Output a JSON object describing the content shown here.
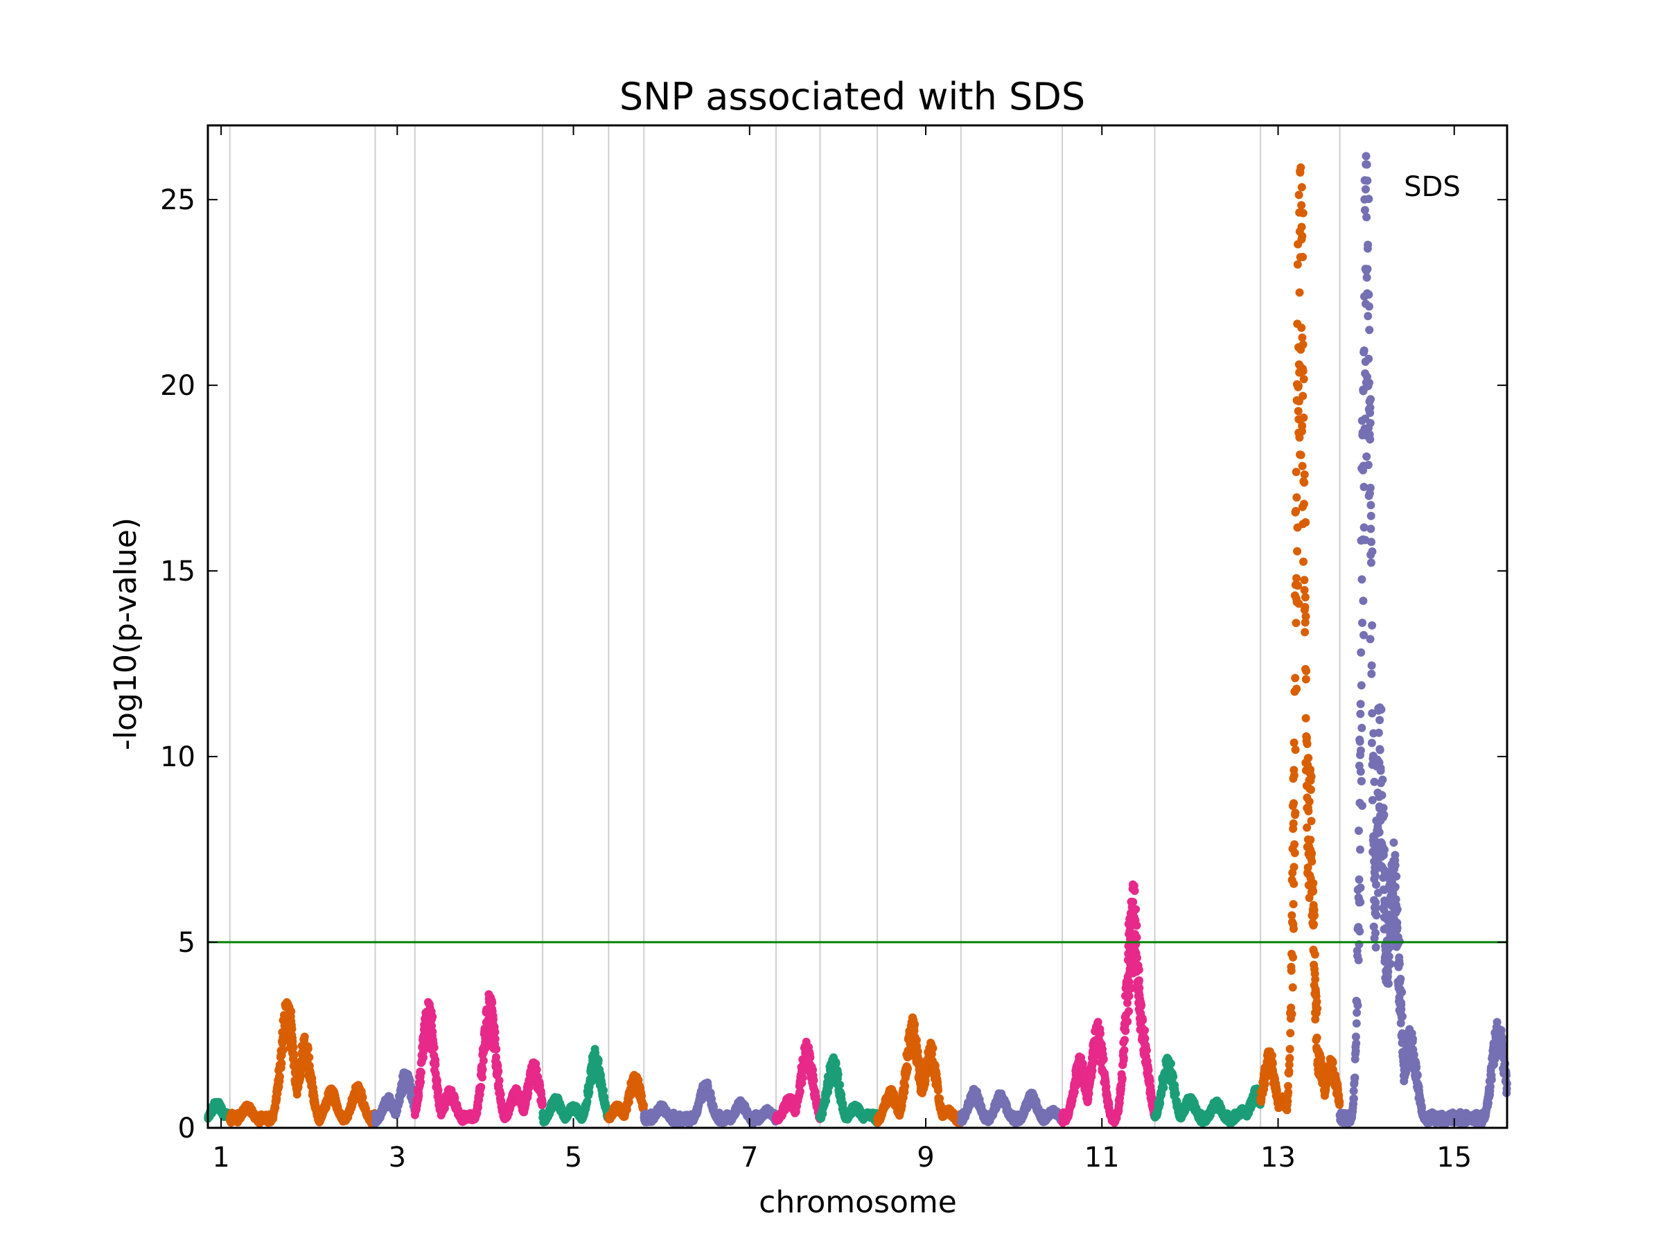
{
  "chart_data": {
    "type": "scatter",
    "title": "SNP associated with SDS",
    "xlabel": "chromosome",
    "ylabel": "-log10(p-value)",
    "xlim": [
      0.85,
      15.6
    ],
    "ylim": [
      0,
      27
    ],
    "x_ticks": [
      1,
      3,
      5,
      7,
      9,
      11,
      13,
      15
    ],
    "y_ticks": [
      0,
      5,
      10,
      15,
      20,
      25
    ],
    "x_tick_labels": [
      "1",
      "3",
      "5",
      "7",
      "9",
      "11",
      "13",
      "15"
    ],
    "y_tick_labels": [
      "0",
      "5",
      "10",
      "15",
      "20",
      "25"
    ],
    "grid": "vertical",
    "chromosome_boundaries": [
      1.1,
      2.75,
      3.2,
      4.65,
      5.4,
      5.8,
      7.3,
      7.8,
      8.45,
      9.4,
      10.55,
      11.6,
      12.8,
      13.7
    ],
    "threshold": {
      "value": 5,
      "color": "#008000"
    },
    "annotations": [
      {
        "text": "SDS",
        "x": 14.75,
        "y": 25.1
      }
    ],
    "series_colors": [
      "#1b9e77",
      "#d95f02",
      "#7570b3",
      "#e7298a"
    ],
    "segments": [
      {
        "x": [
          0.85,
          1.1
        ],
        "color": "#1b9e77",
        "peaks": [
          [
            0.95,
            0.7
          ],
          [
            1.05,
            0.4
          ]
        ]
      },
      {
        "x": [
          1.1,
          2.75
        ],
        "color": "#d95f02",
        "peaks": [
          [
            1.3,
            0.6
          ],
          [
            1.75,
            3.3
          ],
          [
            1.95,
            2.3
          ],
          [
            2.25,
            1.0
          ],
          [
            2.55,
            1.1
          ]
        ]
      },
      {
        "x": [
          2.75,
          3.2
        ],
        "color": "#7570b3",
        "peaks": [
          [
            2.9,
            0.8
          ],
          [
            3.1,
            1.5
          ]
        ]
      },
      {
        "x": [
          3.2,
          4.65
        ],
        "color": "#e7298a",
        "peaks": [
          [
            3.35,
            3.2
          ],
          [
            3.6,
            1.0
          ],
          [
            3.8,
            0.3
          ],
          [
            4.05,
            3.4
          ],
          [
            4.35,
            1.0
          ],
          [
            4.55,
            1.7
          ]
        ]
      },
      {
        "x": [
          4.65,
          5.4
        ],
        "color": "#1b9e77",
        "peaks": [
          [
            4.8,
            0.8
          ],
          [
            5.0,
            0.6
          ],
          [
            5.25,
            2.0
          ]
        ]
      },
      {
        "x": [
          5.4,
          5.8
        ],
        "color": "#d95f02",
        "peaks": [
          [
            5.5,
            0.6
          ],
          [
            5.7,
            1.4
          ]
        ]
      },
      {
        "x": [
          5.8,
          7.3
        ],
        "color": "#7570b3",
        "peaks": [
          [
            6.0,
            0.6
          ],
          [
            6.5,
            1.2
          ],
          [
            6.9,
            0.7
          ],
          [
            7.2,
            0.5
          ]
        ]
      },
      {
        "x": [
          7.3,
          7.8
        ],
        "color": "#e7298a",
        "peaks": [
          [
            7.45,
            0.8
          ],
          [
            7.65,
            2.2
          ]
        ]
      },
      {
        "x": [
          7.8,
          8.45
        ],
        "color": "#1b9e77",
        "peaks": [
          [
            7.95,
            1.8
          ],
          [
            8.2,
            0.6
          ],
          [
            8.35,
            0.4
          ]
        ]
      },
      {
        "x": [
          8.45,
          9.4
        ],
        "color": "#d95f02",
        "peaks": [
          [
            8.6,
            1.0
          ],
          [
            8.85,
            2.8
          ],
          [
            9.05,
            2.2
          ],
          [
            9.25,
            0.5
          ]
        ]
      },
      {
        "x": [
          9.4,
          10.55
        ],
        "color": "#7570b3",
        "peaks": [
          [
            9.55,
            1.0
          ],
          [
            9.85,
            0.9
          ],
          [
            10.2,
            0.9
          ],
          [
            10.45,
            0.5
          ]
        ]
      },
      {
        "x": [
          10.55,
          11.6
        ],
        "color": "#e7298a",
        "peaks": [
          [
            10.75,
            1.8
          ],
          [
            10.95,
            2.7
          ],
          [
            11.35,
            6.3
          ],
          [
            11.45,
            2.8
          ],
          [
            11.55,
            0.5
          ]
        ]
      },
      {
        "x": [
          11.6,
          12.8
        ],
        "color": "#1b9e77",
        "peaks": [
          [
            11.75,
            1.8
          ],
          [
            12.0,
            0.8
          ],
          [
            12.3,
            0.7
          ],
          [
            12.6,
            0.5
          ],
          [
            12.75,
            1.0
          ]
        ]
      },
      {
        "x": [
          12.8,
          13.7
        ],
        "color": "#d95f02",
        "peaks": [
          [
            12.9,
            2.0
          ],
          [
            13.05,
            0.8
          ],
          [
            13.25,
            25.6
          ],
          [
            13.35,
            9.6
          ],
          [
            13.45,
            2.0
          ],
          [
            13.6,
            1.8
          ]
        ]
      },
      {
        "x": [
          13.7,
          15.6
        ],
        "color": "#7570b3",
        "peaks": [
          [
            14.0,
            25.9
          ],
          [
            14.15,
            11.0
          ],
          [
            14.3,
            7.3
          ],
          [
            14.5,
            2.5
          ],
          [
            14.75,
            0.2
          ],
          [
            15.5,
            2.8
          ]
        ]
      }
    ]
  }
}
